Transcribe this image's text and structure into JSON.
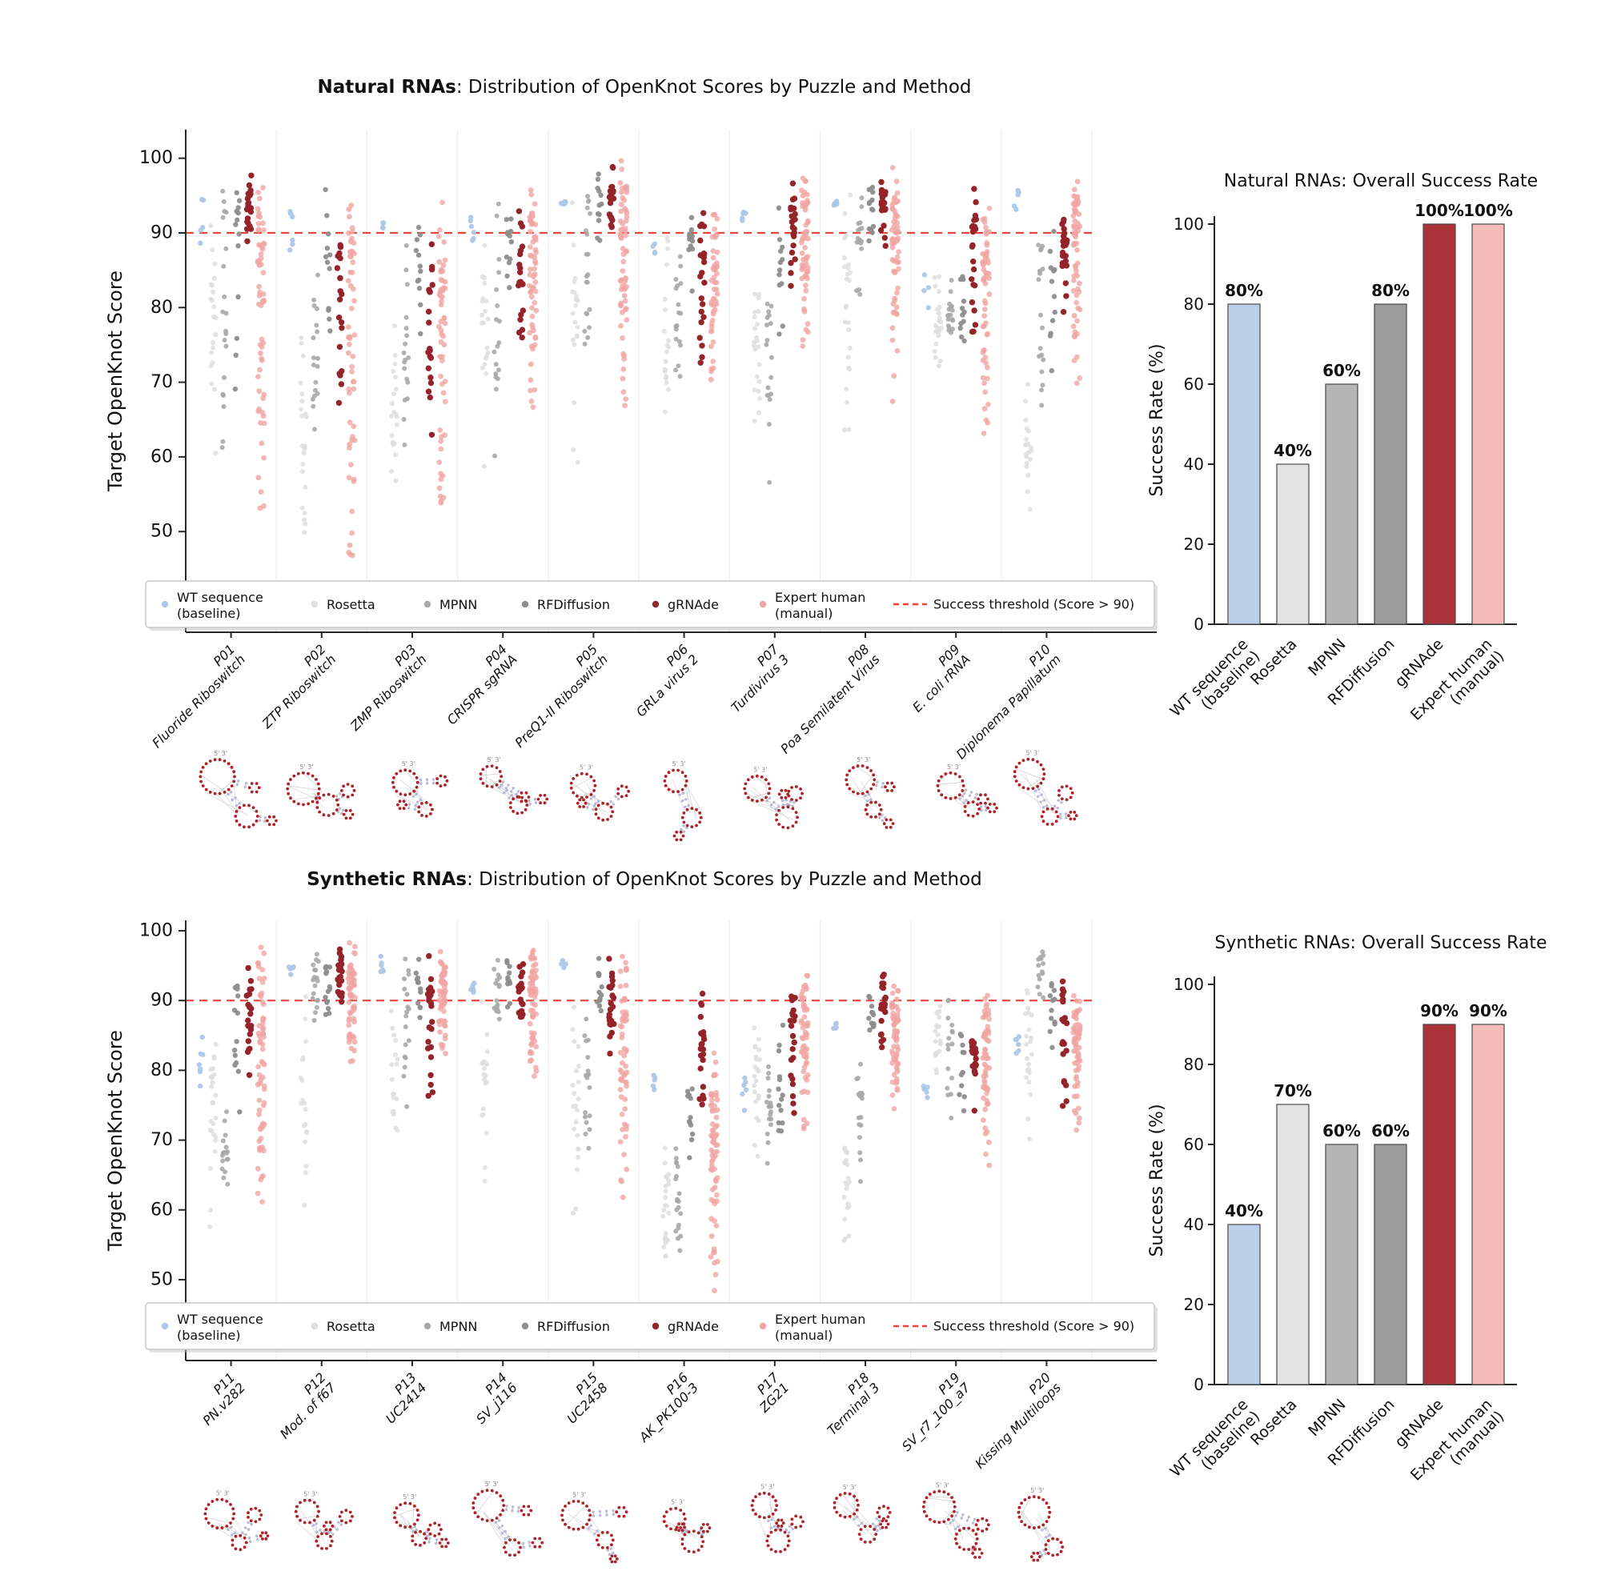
{
  "figure_background": "#ffffff",
  "threshold": {
    "value": 90,
    "label": "Success threshold (Score > 90)",
    "color": "#e8433c"
  },
  "methods": [
    {
      "key": "wt",
      "label": "WT sequence\n(baseline)",
      "color": "#aec7e8",
      "bar_color": "#b9cfea"
    },
    {
      "key": "ro",
      "label": "Rosetta",
      "color": "#dedede",
      "bar_color": "#e3e3e3"
    },
    {
      "key": "mp",
      "label": "MPNN",
      "color": "#a8a8a8",
      "bar_color": "#b5b5b5"
    },
    {
      "key": "rf",
      "label": "RFDiffusion",
      "color": "#8d8d8d",
      "bar_color": "#9c9c9c"
    },
    {
      "key": "gr",
      "label": "gRNAde",
      "color": "#95232a",
      "bar_color": "#a93338"
    },
    {
      "key": "ex",
      "label": "Expert human\n(manual)",
      "color": "#f0a5a3",
      "bar_color": "#f5bcba"
    }
  ],
  "chart_data": [
    {
      "id": "natural-strip",
      "type": "scatter",
      "title_bold": "Natural RNAs",
      "title_rest": ": Distribution of OpenKnot Scores by Puzzle and Method",
      "ylabel": "Target OpenKnot Score",
      "yticks": [
        50,
        60,
        70,
        80,
        90,
        100
      ],
      "ylim": [
        36,
        103
      ],
      "threshold": 90,
      "grid": "vertical-group-separators",
      "legend_position": "bottom",
      "points_encoding": "per method: [min, mode, max, n_points] approximate OpenKnot score distribution read from plot",
      "puzzles": [
        {
          "id": "P01",
          "name": "Fluoride Riboswitch",
          "d": {
            "wt": [
              88,
              90,
              95,
              5
            ],
            "ro": [
              60,
              78,
              97,
              22
            ],
            "mp": [
              55,
              85,
              99,
              20
            ],
            "rf": [
              62,
              92,
              99,
              13
            ],
            "gr": [
              86,
              94,
              99,
              22
            ],
            "ex": [
              48,
              90,
              99,
              60
            ]
          }
        },
        {
          "id": "P02",
          "name": "ZTP Riboswitch",
          "d": {
            "wt": [
              87,
              92,
              95,
              6
            ],
            "ro": [
              48,
              64,
              85,
              22
            ],
            "mp": [
              58,
              76,
              93,
              18
            ],
            "rf": [
              72,
              88,
              96,
              12
            ],
            "gr": [
              61,
              86,
              94,
              20
            ],
            "ex": [
              42,
              86,
              96,
              55
            ]
          }
        },
        {
          "id": "P03",
          "name": "ZMP Riboswitch",
          "d": {
            "wt": [
              90,
              91,
              92,
              4
            ],
            "ro": [
              55,
              68,
              82,
              20
            ],
            "mp": [
              58,
              78,
              90,
              18
            ],
            "rf": [
              65,
              88,
              97,
              12
            ],
            "gr": [
              61,
              80,
              94,
              20
            ],
            "ex": [
              48,
              85,
              96,
              55
            ]
          }
        },
        {
          "id": "P04",
          "name": "CRISPR sgRNA",
          "d": {
            "wt": [
              87,
              93,
              95,
              6
            ],
            "ro": [
              53,
              75,
              96,
              20
            ],
            "mp": [
              58,
              80,
              96,
              18
            ],
            "rf": [
              82,
              90,
              96,
              12
            ],
            "gr": [
              74,
              87,
              95,
              20
            ],
            "ex": [
              62,
              91,
              97,
              60
            ]
          }
        },
        {
          "id": "P05",
          "name": "PreQ1-II Riboswitch",
          "d": {
            "wt": [
              93,
              94,
              95,
              5
            ],
            "ro": [
              55,
              76,
              97,
              20
            ],
            "mp": [
              70,
              92,
              99,
              20
            ],
            "rf": [
              88,
              95,
              99,
              12
            ],
            "gr": [
              88,
              95,
              99,
              22
            ],
            "ex": [
              66,
              94,
              100,
              65
            ]
          }
        },
        {
          "id": "P06",
          "name": "GRLa virus 2",
          "d": {
            "wt": [
              87,
              88,
              90,
              4
            ],
            "ro": [
              64,
              75,
              93,
              20
            ],
            "mp": [
              66,
              85,
              92,
              18
            ],
            "rf": [
              81,
              90,
              97,
              12
            ],
            "gr": [
              65,
              88,
              97,
              22
            ],
            "ex": [
              68,
              86,
              94,
              50
            ]
          }
        },
        {
          "id": "P07",
          "name": "Turdivirus 3",
          "d": {
            "wt": [
              91,
              92,
              94,
              5
            ],
            "ro": [
              60,
              72,
              86,
              22
            ],
            "mp": [
              54,
              75,
              88,
              18
            ],
            "rf": [
              73,
              87,
              95,
              12
            ],
            "gr": [
              81,
              91,
              98,
              22
            ],
            "ex": [
              72,
              92,
              99,
              55
            ]
          }
        },
        {
          "id": "P08",
          "name": "Poa Semilatent Virus",
          "d": {
            "wt": [
              93,
              94,
              95,
              5
            ],
            "ro": [
              59,
              88,
              96,
              25
            ],
            "mp": [
              75,
              90,
              96,
              18
            ],
            "rf": [
              88,
              94,
              98,
              14
            ],
            "gr": [
              88,
              94,
              98,
              22
            ],
            "ex": [
              65,
              92,
              99,
              60
            ]
          }
        },
        {
          "id": "P09",
          "name": "E. coli rRNA",
          "d": {
            "wt": [
              79,
              82,
              86,
              4
            ],
            "ro": [
              69,
              78,
              86,
              22
            ],
            "mp": [
              74,
              81,
              87,
              18
            ],
            "rf": [
              73,
              81,
              86,
              12
            ],
            "gr": [
              73,
              92,
              97,
              22
            ],
            "ex": [
              58,
              87,
              94,
              60
            ]
          }
        },
        {
          "id": "P10",
          "name": "Diplonema Papillatum",
          "d": {
            "wt": [
              91,
              95,
              97,
              5
            ],
            "ro": [
              52,
              62,
              73,
              20
            ],
            "mp": [
              61,
              78,
              94,
              18
            ],
            "rf": [
              71,
              86,
              95,
              12
            ],
            "gr": [
              72,
              89,
              95,
              22
            ],
            "ex": [
              69,
              93,
              99,
              60
            ]
          }
        }
      ]
    },
    {
      "id": "natural-bars",
      "type": "bar",
      "title": "Natural RNAs: Overall Success Rate",
      "ylabel": "Success Rate (%)",
      "yticks": [
        0,
        20,
        40,
        60,
        80,
        100
      ],
      "ylim": [
        0,
        100
      ],
      "categories": [
        "WT sequence\n(baseline)",
        "Rosetta",
        "MPNN",
        "RFDiffusion",
        "gRNAde",
        "Expert human\n(manual)"
      ],
      "values": [
        80,
        40,
        60,
        80,
        100,
        100
      ],
      "labels": [
        "80%",
        "40%",
        "60%",
        "80%",
        "100%",
        "100%"
      ]
    },
    {
      "id": "synthetic-strip",
      "type": "scatter",
      "title_bold": "Synthetic RNAs",
      "title_rest": ": Distribution of OpenKnot Scores by Puzzle and Method",
      "ylabel": "Target OpenKnot Score",
      "yticks": [
        50,
        60,
        70,
        80,
        90,
        100
      ],
      "ylim": [
        38,
        102
      ],
      "threshold": 90,
      "grid": "vertical-group-separators",
      "legend_position": "bottom",
      "points_encoding": "per method: [min, mode, max, n_points] approximate OpenKnot score distribution read from plot",
      "puzzles": [
        {
          "id": "P11",
          "name": "PN.v282",
          "d": {
            "wt": [
              77,
              81,
              86,
              7
            ],
            "ro": [
              55,
              77,
              88,
              25
            ],
            "mp": [
              60,
              68,
              75,
              18
            ],
            "rf": [
              69,
              90,
              96,
              13
            ],
            "gr": [
              72,
              90,
              98,
              22
            ],
            "ex": [
              57,
              90,
              99,
              65
            ]
          }
        },
        {
          "id": "P12",
          "name": "Mod. of f67",
          "d": {
            "wt": [
              93,
              95,
              97,
              6
            ],
            "ro": [
              60,
              80,
              92,
              20
            ],
            "mp": [
              85,
              93,
              98,
              18
            ],
            "rf": [
              86,
              93,
              98,
              14
            ],
            "gr": [
              87,
              94,
              98,
              22
            ],
            "ex": [
              80,
              93,
              99,
              60
            ]
          }
        },
        {
          "id": "P13",
          "name": "UC2414",
          "d": {
            "wt": [
              93,
              95,
              97,
              6
            ],
            "ro": [
              64,
              80,
              93,
              18
            ],
            "mp": [
              73,
              88,
              97,
              18
            ],
            "rf": [
              87,
              93,
              97,
              12
            ],
            "gr": [
              69,
              91,
              97,
              22
            ],
            "ex": [
              81,
              93,
              99,
              55
            ]
          }
        },
        {
          "id": "P14",
          "name": "SV_j116",
          "d": {
            "wt": [
              91,
              92,
              93,
              5
            ],
            "ro": [
              60,
              78,
              92,
              20
            ],
            "mp": [
              84,
              92,
              97,
              16
            ],
            "rf": [
              87,
              93,
              97,
              12
            ],
            "gr": [
              86,
              92,
              97,
              20
            ],
            "ex": [
              76,
              93,
              99,
              60
            ]
          }
        },
        {
          "id": "P15",
          "name": "UC2458",
          "d": {
            "wt": [
              94,
              95,
              96,
              5
            ],
            "ro": [
              55,
              75,
              92,
              22
            ],
            "mp": [
              60,
              82,
              97,
              18
            ],
            "rf": [
              85,
              93,
              98,
              12
            ],
            "gr": [
              81,
              92,
              97,
              22
            ],
            "ex": [
              58,
              90,
              98,
              60
            ]
          }
        },
        {
          "id": "P16",
          "name": "AK_PK100-3",
          "d": {
            "wt": [
              77,
              78,
              80,
              5
            ],
            "ro": [
              52,
              60,
              70,
              25
            ],
            "mp": [
              48,
              60,
              73,
              20
            ],
            "rf": [
              60,
              72,
              84,
              12
            ],
            "gr": [
              67,
              84,
              96,
              22
            ],
            "ex": [
              47,
              73,
              86,
              70
            ]
          }
        },
        {
          "id": "P17",
          "name": "ZG21",
          "d": {
            "wt": [
              74,
              77,
              80,
              6
            ],
            "ro": [
              66,
              80,
              92,
              22
            ],
            "mp": [
              65,
              76,
              84,
              18
            ],
            "rf": [
              66,
              80,
              88,
              14
            ],
            "gr": [
              67,
              88,
              94,
              22
            ],
            "ex": [
              70,
              90,
              95,
              55
            ]
          }
        },
        {
          "id": "P18",
          "name": "Terminal 3",
          "d": {
            "wt": [
              84,
              85,
              88,
              5
            ],
            "ro": [
              50,
              62,
              72,
              22
            ],
            "mp": [
              63,
              75,
              83,
              18
            ],
            "rf": [
              83,
              88,
              91,
              12
            ],
            "gr": [
              80,
              92,
              96,
              22
            ],
            "ex": [
              74,
              88,
              93,
              60
            ]
          }
        },
        {
          "id": "P19",
          "name": "SV_r7_100_a7",
          "d": {
            "wt": [
              76,
              78,
              79,
              6
            ],
            "ro": [
              76,
              85,
              93,
              22
            ],
            "mp": [
              70,
              83,
              93,
              16
            ],
            "rf": [
              72,
              82,
              88,
              12
            ],
            "gr": [
              72,
              83,
              87,
              20
            ],
            "ex": [
              65,
              85,
              93,
              60
            ]
          }
        },
        {
          "id": "P20",
          "name": "Kissing Multiloops",
          "d": {
            "wt": [
              82,
              84,
              86,
              6
            ],
            "ro": [
              67,
              88,
              96,
              22
            ],
            "mp": [
              89,
              94,
              98,
              14
            ],
            "rf": [
              78,
              90,
              96,
              12
            ],
            "gr": [
              71,
              88,
              96,
              20
            ],
            "ex": [
              69,
              86,
              93,
              60
            ]
          }
        }
      ]
    },
    {
      "id": "synthetic-bars",
      "type": "bar",
      "title": "Synthetic RNAs: Overall Success Rate",
      "ylabel": "Success Rate (%)",
      "yticks": [
        0,
        20,
        40,
        60,
        80,
        100
      ],
      "ylim": [
        0,
        100
      ],
      "categories": [
        "WT sequence\n(baseline)",
        "Rosetta",
        "MPNN",
        "RFDiffusion",
        "gRNAde",
        "Expert human\n(manual)"
      ],
      "values": [
        40,
        70,
        60,
        60,
        90,
        90
      ],
      "labels": [
        "40%",
        "70%",
        "60%",
        "60%",
        "90%",
        "90%"
      ]
    }
  ]
}
